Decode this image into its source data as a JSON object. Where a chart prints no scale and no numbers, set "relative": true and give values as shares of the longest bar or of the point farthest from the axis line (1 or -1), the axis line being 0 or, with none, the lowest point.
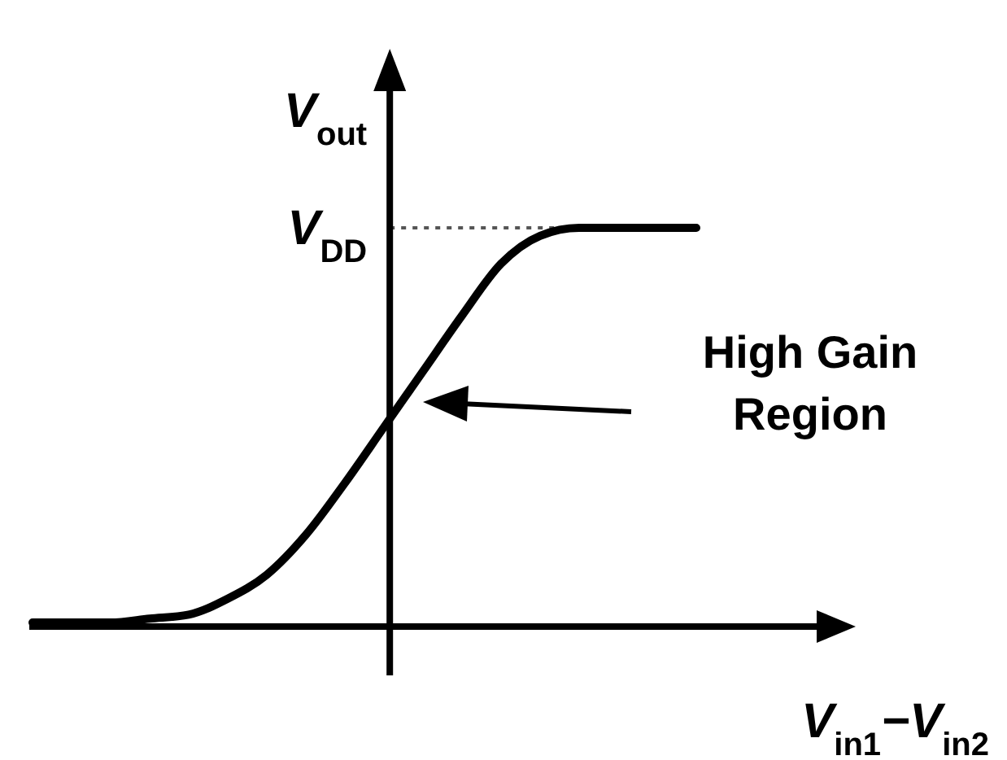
{
  "chart_data": {
    "type": "line",
    "relative": true,
    "ylabel": "V$_{out}$",
    "xlabel": "V$_{in1}$−V$_{in2}$",
    "categories": [
      null,
      null,
      null,
      null,
      null,
      null,
      null,
      null,
      null,
      null,
      null,
      null,
      null,
      null,
      null,
      null,
      null,
      null
    ],
    "series": [
      {
        "color": "#000000",
        "values": [
          0.01,
          0.01,
          0.01,
          0.02,
          0.03,
          0.07,
          0.13,
          0.23,
          0.36,
          0.5,
          0.64,
          0.78,
          0.91,
          0.98,
          1,
          1,
          1,
          1
        ]
      }
    ],
    "ref_lines": [
      {
        "axis": "y",
        "value": 1,
        "label": "V$_{DD}$",
        "line_style": "dotted",
        "color": "#555555"
      }
    ],
    "annotations": [
      "High Gain Region"
    ],
    "line_style": "solid",
    "marker": "none"
  }
}
